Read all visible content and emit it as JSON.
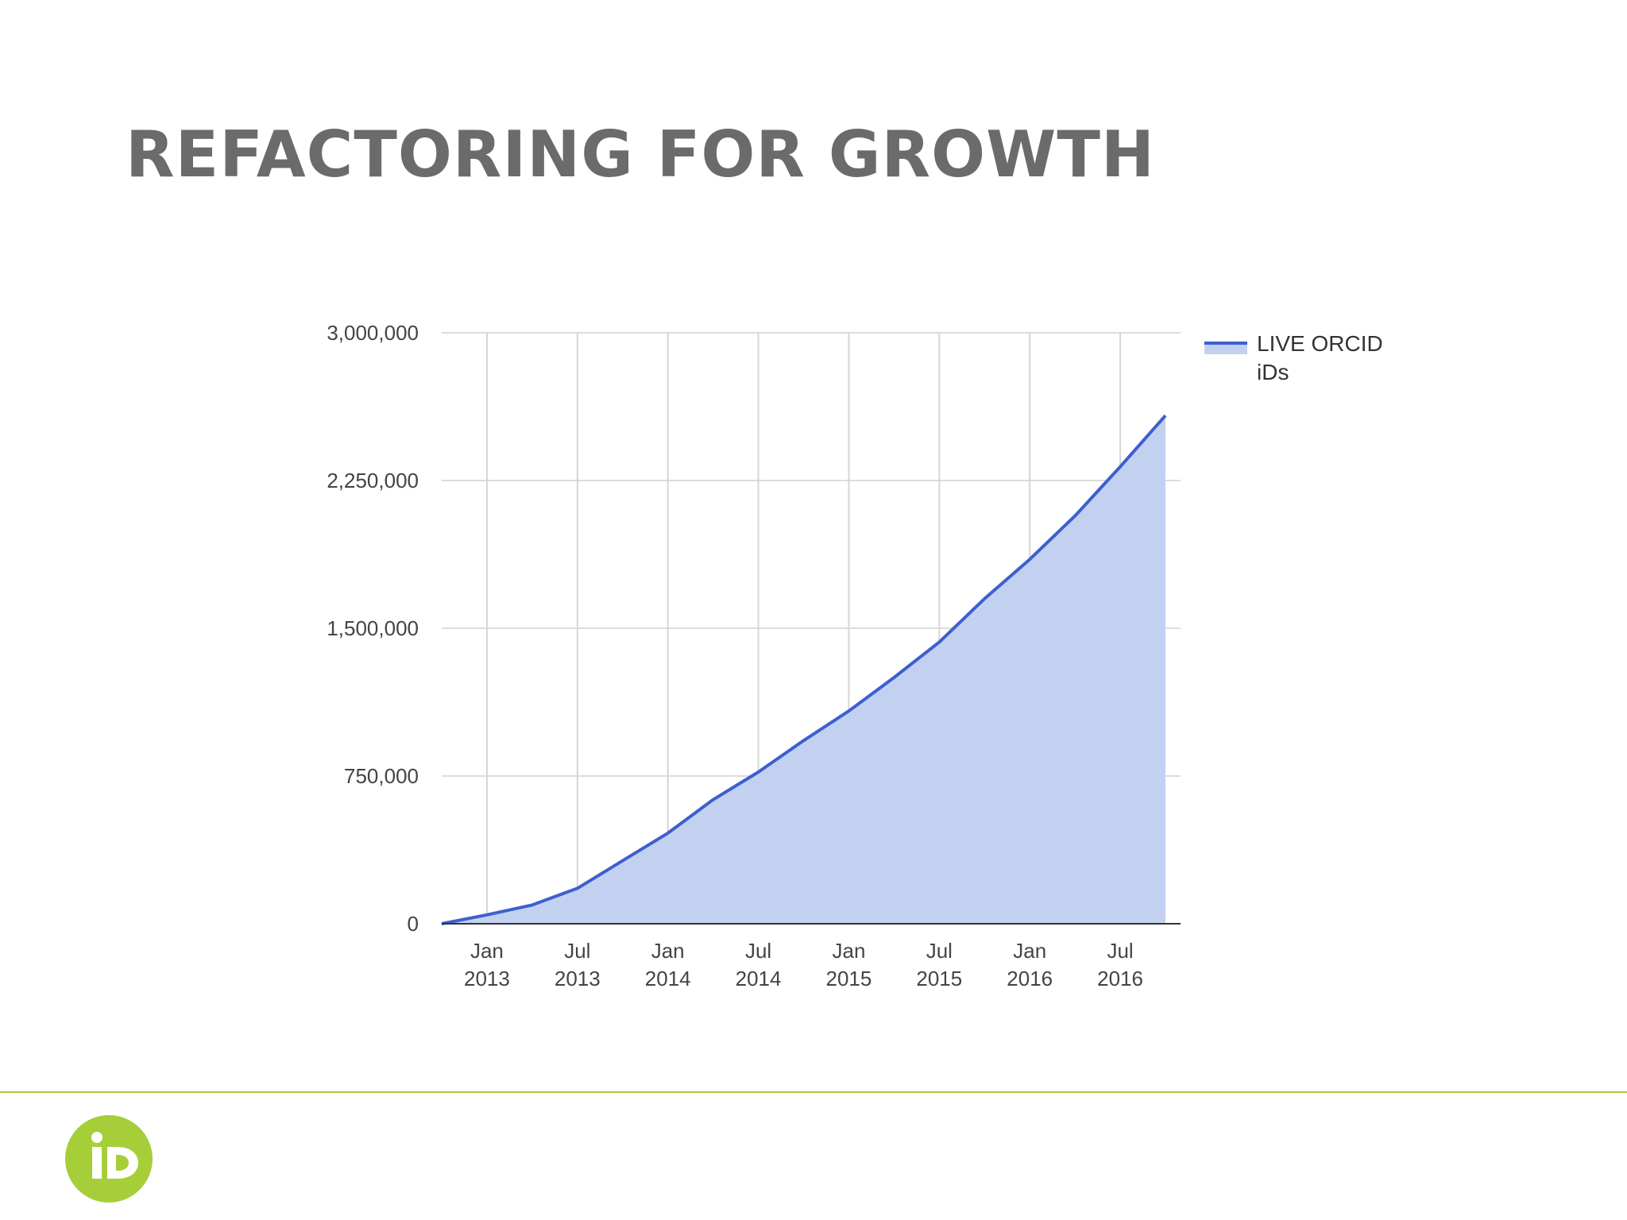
{
  "slide": {
    "title": "REFACTORING FOR GROWTH",
    "accent_color": "#a6ce39",
    "logo_icon": "orcid-id-icon"
  },
  "chart_data": {
    "type": "area",
    "title": "",
    "xlabel": "",
    "ylabel": "",
    "ylim": [
      0,
      3000000
    ],
    "y_ticks": [
      "3,000,000",
      "2,250,000",
      "1,500,000",
      "750,000",
      "0"
    ],
    "y_tick_values": [
      3000000,
      2250000,
      1500000,
      750000,
      0
    ],
    "x_tick_labels": [
      {
        "month": "Jan",
        "year": "2013"
      },
      {
        "month": "Jul",
        "year": "2013"
      },
      {
        "month": "Jan",
        "year": "2014"
      },
      {
        "month": "Jul",
        "year": "2014"
      },
      {
        "month": "Jan",
        "year": "2015"
      },
      {
        "month": "Jul",
        "year": "2015"
      },
      {
        "month": "Jan",
        "year": "2016"
      },
      {
        "month": "Jul",
        "year": "2016"
      }
    ],
    "x_tick_dates": [
      "2013-01",
      "2013-07",
      "2014-01",
      "2014-07",
      "2015-01",
      "2015-07",
      "2016-01",
      "2016-07"
    ],
    "grid": true,
    "legend_position": "top-right",
    "series": [
      {
        "name": "LIVE ORCID iDs",
        "line_color": "#3d5fcf",
        "fill_color": "#c3d1f1",
        "x": [
          "2012-10",
          "2013-01",
          "2013-04",
          "2013-07",
          "2013-10",
          "2014-01",
          "2014-04",
          "2014-07",
          "2014-10",
          "2015-01",
          "2015-04",
          "2015-07",
          "2015-10",
          "2016-01",
          "2016-04",
          "2016-07",
          "2016-10"
        ],
        "y": [
          0,
          45000,
          95000,
          180000,
          320000,
          460000,
          630000,
          770000,
          930000,
          1080000,
          1250000,
          1430000,
          1650000,
          1850000,
          2070000,
          2320000,
          2580000
        ]
      }
    ],
    "legend_label_lines": [
      "LIVE ORCID",
      "iDs"
    ]
  }
}
